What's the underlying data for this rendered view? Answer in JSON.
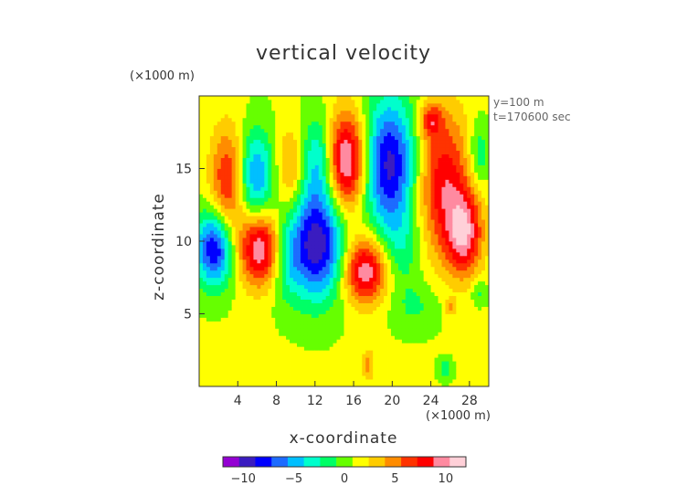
{
  "chart_data": {
    "type": "heatmap",
    "title": "vertical velocity",
    "xlabel": "x-coordinate",
    "ylabel": "z-coordinate",
    "x_unit": "(×1000 m)",
    "y_unit": "(×1000 m)",
    "annotations": [
      "y=100 m",
      "t=170600 sec"
    ],
    "xlim": [
      0,
      30
    ],
    "ylim": [
      0,
      20
    ],
    "x_ticks": [
      4,
      8,
      12,
      16,
      20,
      24,
      28
    ],
    "y_ticks": [
      5,
      10,
      15
    ],
    "grid": false,
    "colorbar": {
      "range": [
        -12,
        12
      ],
      "ticks": [
        -10,
        -5,
        0,
        5,
        10
      ],
      "colors": [
        "#9400d3",
        "#3a1cc0",
        "#0000ff",
        "#1d6bff",
        "#00bfff",
        "#00ffcc",
        "#00ff66",
        "#66ff00",
        "#ffff00",
        "#ffcc00",
        "#ff8c00",
        "#ff3300",
        "#ff0000",
        "#ff8aa0",
        "#ffd0d8"
      ]
    },
    "features": [
      {
        "x": 3.0,
        "z": 14.2,
        "value": 6.5,
        "sx": 1.3,
        "sz": 2.6
      },
      {
        "x": 1.6,
        "z": 9.5,
        "value": -10.0,
        "sx": 1.4,
        "sz": 1.8
      },
      {
        "x": 6.5,
        "z": 9.5,
        "value": 10.0,
        "sx": 1.7,
        "sz": 1.8
      },
      {
        "x": 5.8,
        "z": 14.5,
        "value": -7.0,
        "sx": 1.3,
        "sz": 2.2
      },
      {
        "x": 9.5,
        "z": 15.0,
        "value": 4.0,
        "sx": 1.0,
        "sz": 2.0
      },
      {
        "x": 8.8,
        "z": 9.0,
        "value": -4.5,
        "sx": 1.2,
        "sz": 2.0
      },
      {
        "x": 12.2,
        "z": 9.8,
        "value": -11.0,
        "sx": 2.0,
        "sz": 2.6
      },
      {
        "x": 12.5,
        "z": 15.6,
        "value": -6.0,
        "sx": 1.3,
        "sz": 2.2
      },
      {
        "x": 15.2,
        "z": 15.5,
        "value": 11.0,
        "sx": 1.6,
        "sz": 2.4
      },
      {
        "x": 17.2,
        "z": 8.0,
        "value": 9.5,
        "sx": 1.6,
        "sz": 1.6
      },
      {
        "x": 19.7,
        "z": 15.3,
        "value": -10.5,
        "sx": 2.0,
        "sz": 3.2
      },
      {
        "x": 21.0,
        "z": 9.5,
        "value": -2.5,
        "sx": 1.5,
        "sz": 2.0
      },
      {
        "x": 25.3,
        "z": 14.0,
        "value": 7.5,
        "sx": 2.0,
        "sz": 3.5
      },
      {
        "x": 27.5,
        "z": 10.5,
        "value": 8.0,
        "sx": 1.3,
        "sz": 2.0
      },
      {
        "x": 24.0,
        "z": 18.3,
        "value": 5.5,
        "sx": 0.8,
        "sz": 0.8
      },
      {
        "x": 29.0,
        "z": 16.0,
        "value": -3.5,
        "sx": 0.8,
        "sz": 1.6
      },
      {
        "x": 22.5,
        "z": 5.5,
        "value": -2.0,
        "sx": 1.8,
        "sz": 1.2
      },
      {
        "x": 17.5,
        "z": 1.5,
        "value": 3.5,
        "sx": 0.5,
        "sz": 0.8
      },
      {
        "x": 25.5,
        "z": 1.2,
        "value": -3.0,
        "sx": 0.5,
        "sz": 0.5
      },
      {
        "x": 26.0,
        "z": 5.5,
        "value": 3.5,
        "sx": 0.4,
        "sz": 0.4
      },
      {
        "x": 29.0,
        "z": 6.5,
        "value": -2.5,
        "sx": 0.6,
        "sz": 0.6
      }
    ]
  }
}
